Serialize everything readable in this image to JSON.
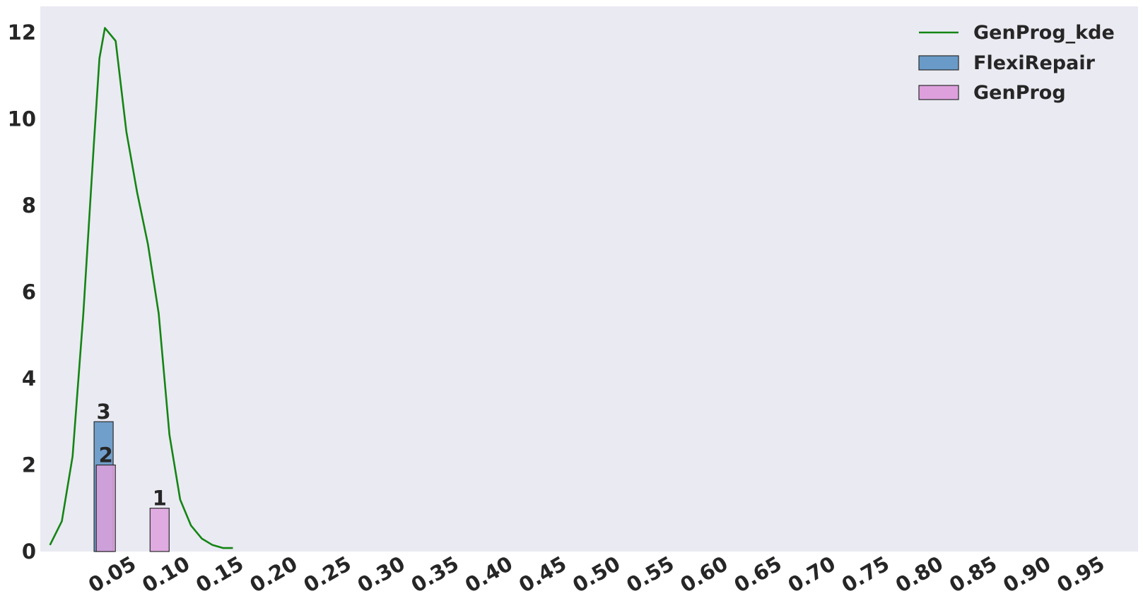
{
  "chart_data": {
    "type": "bar",
    "title": "",
    "xlabel": "",
    "ylabel": "",
    "xlim": [
      -0.02,
      1.0
    ],
    "ylim": [
      0,
      12.6
    ],
    "grid": false,
    "legend_position": "top-right",
    "background": "#EAEAF2",
    "xticks": [
      "0.05",
      "0.10",
      "0.15",
      "0.20",
      "0.25",
      "0.30",
      "0.35",
      "0.40",
      "0.45",
      "0.50",
      "0.55",
      "0.60",
      "0.65",
      "0.70",
      "0.75",
      "0.80",
      "0.85",
      "0.90",
      "0.95"
    ],
    "xtick_values": [
      0.05,
      0.1,
      0.15,
      0.2,
      0.25,
      0.3,
      0.35,
      0.4,
      0.45,
      0.5,
      0.55,
      0.6,
      0.65,
      0.7,
      0.75,
      0.8,
      0.85,
      0.9,
      0.95
    ],
    "yticks": [
      "0",
      "2",
      "4",
      "6",
      "8",
      "10",
      "12"
    ],
    "ytick_values": [
      0,
      2,
      4,
      6,
      8,
      10,
      12
    ],
    "series": [
      {
        "name": "FlexiRepair",
        "kind": "bar",
        "color": "#6A9BC8",
        "bars": [
          {
            "x": 0.03,
            "value": 3,
            "label": "3"
          }
        ]
      },
      {
        "name": "GenProg",
        "kind": "bar",
        "color": "#DDA0DD",
        "bars": [
          {
            "x": 0.032,
            "value": 2,
            "label": "2"
          },
          {
            "x": 0.082,
            "value": 1,
            "label": "1"
          }
        ]
      },
      {
        "name": "GenProg_kde",
        "kind": "line",
        "color": "#138513",
        "x": [
          -0.011,
          0.0,
          0.01,
          0.02,
          0.03,
          0.035,
          0.04,
          0.05,
          0.06,
          0.07,
          0.08,
          0.09,
          0.1,
          0.11,
          0.12,
          0.13,
          0.14,
          0.15,
          0.159
        ],
        "y": [
          0.15,
          0.7,
          2.2,
          5.5,
          9.5,
          11.4,
          12.1,
          11.8,
          9.7,
          8.3,
          7.1,
          5.5,
          2.7,
          1.2,
          0.6,
          0.3,
          0.15,
          0.08,
          0.08
        ]
      }
    ],
    "legend": [
      "GenProg_kde",
      "FlexiRepair",
      "GenProg"
    ]
  }
}
